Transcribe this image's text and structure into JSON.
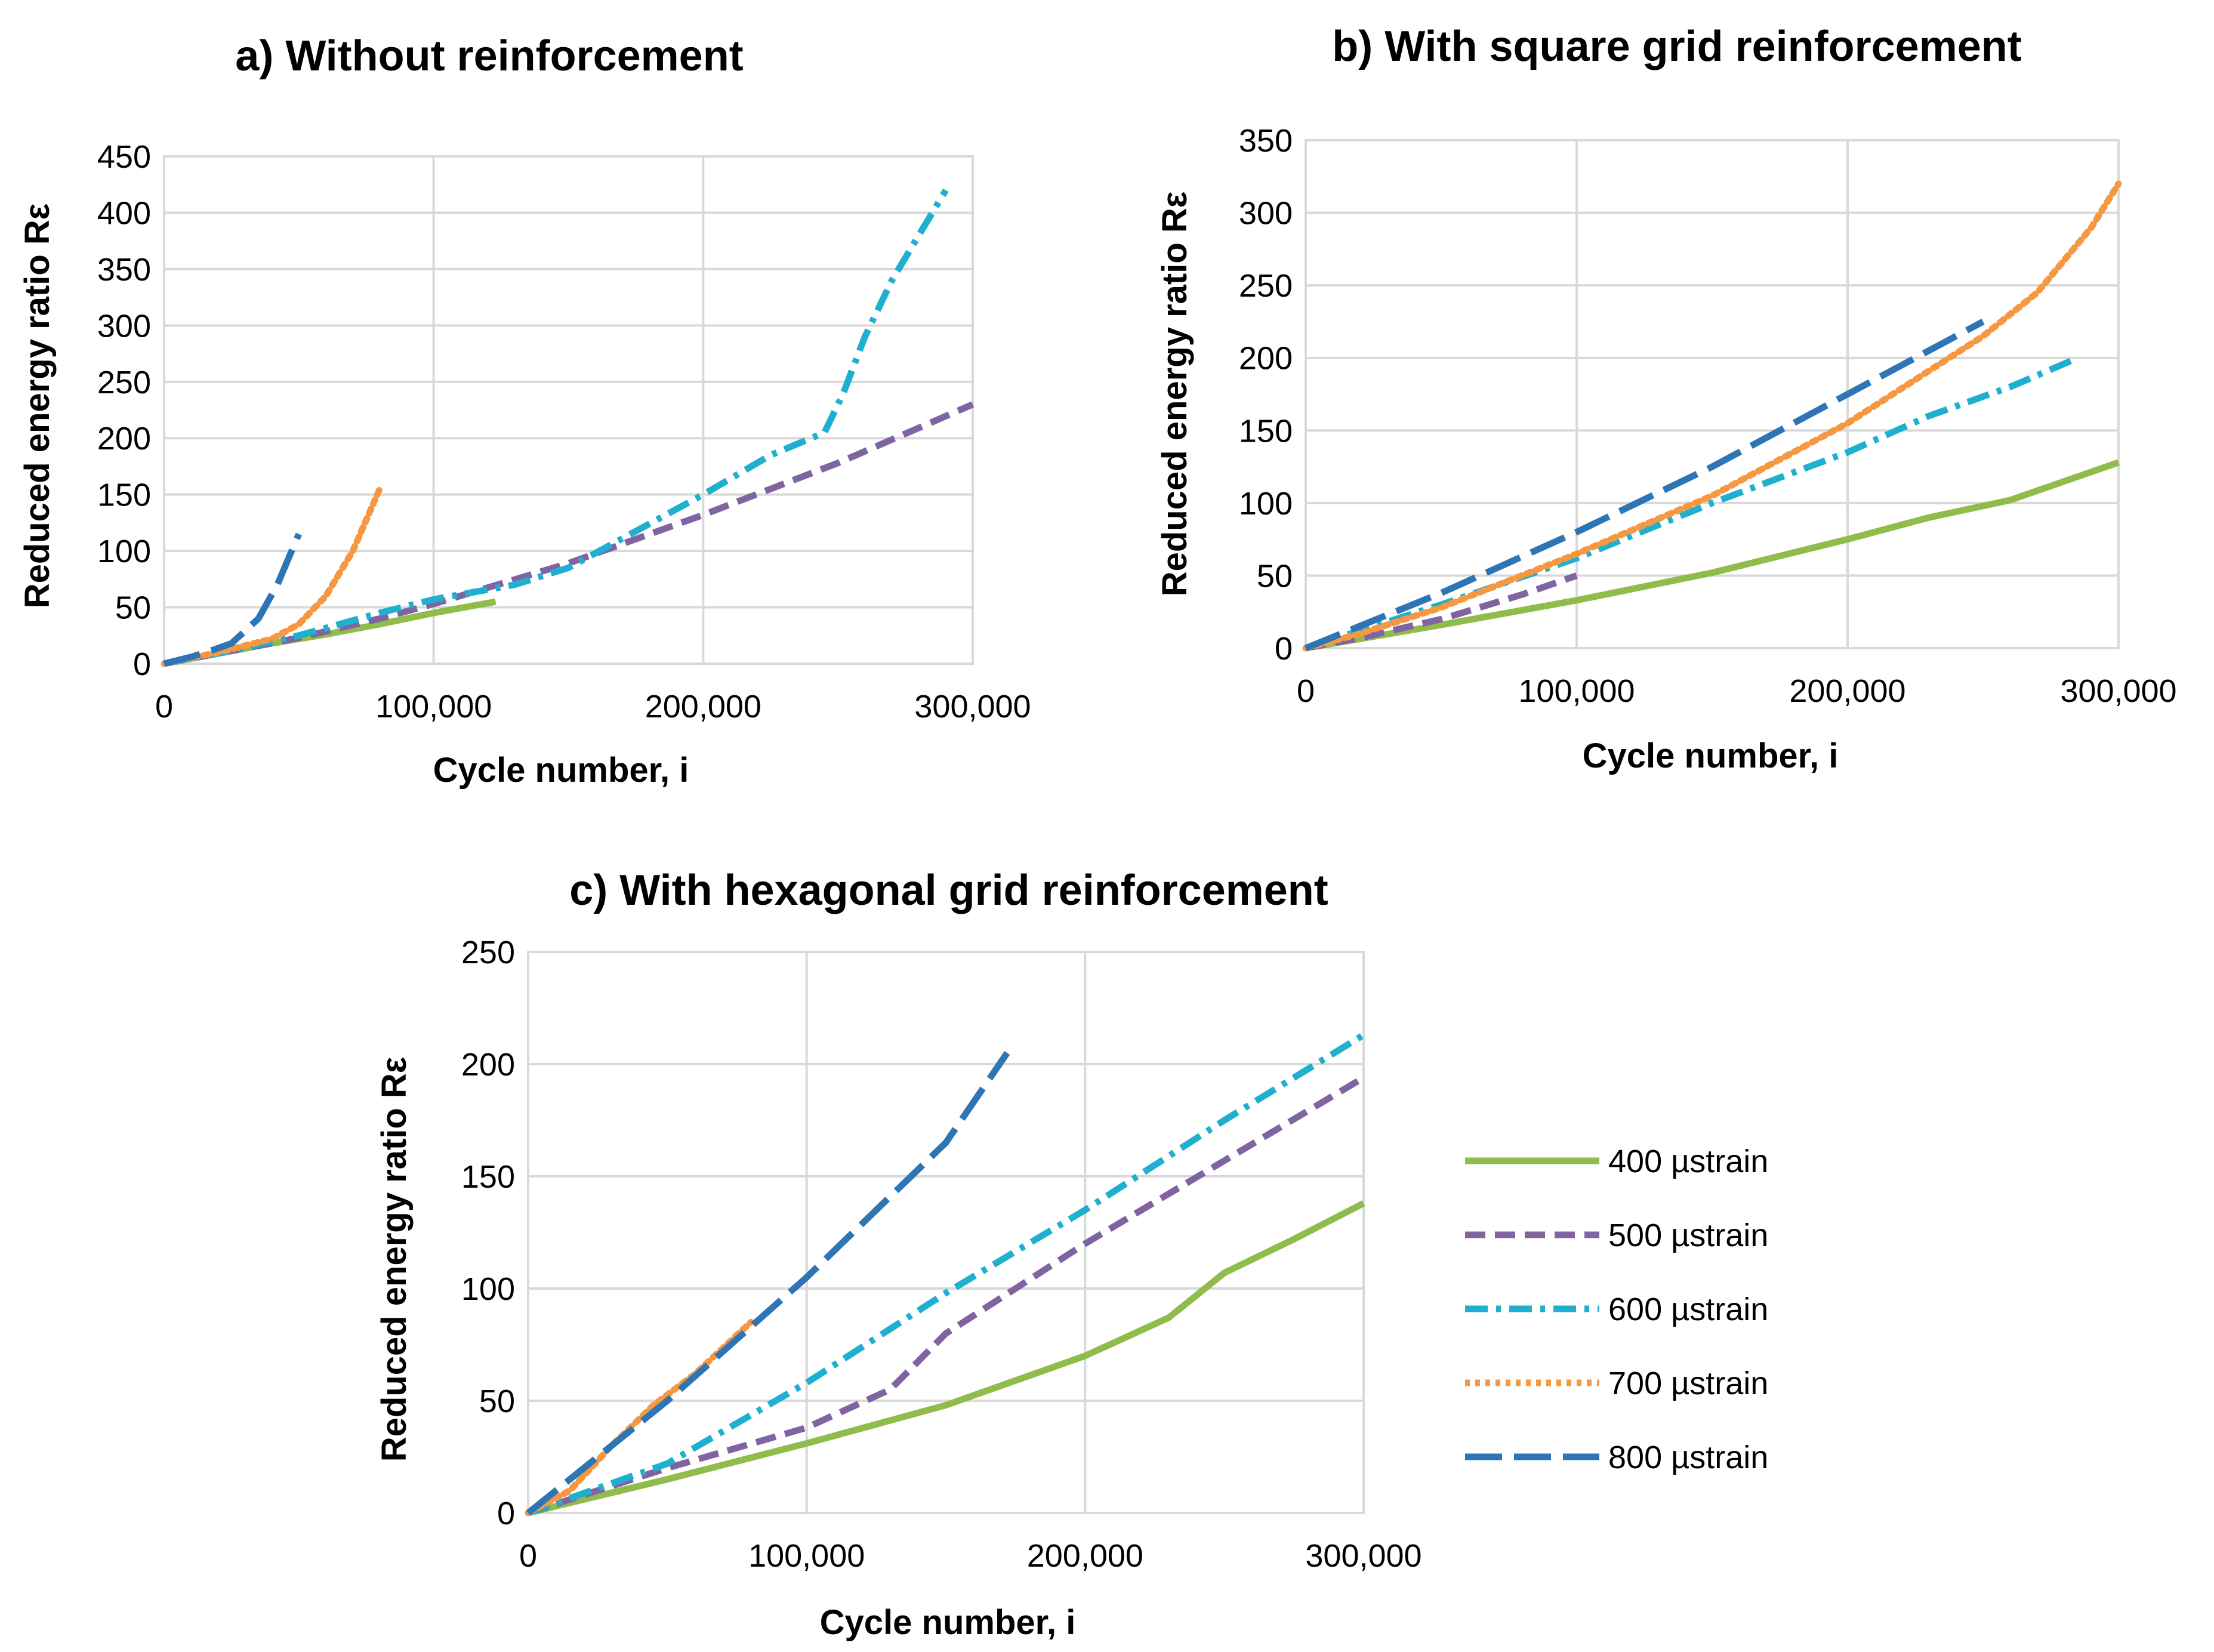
{
  "chart_data": [
    {
      "type": "line",
      "title": "a) Without reinforcement",
      "xlabel": "Cycle number, i",
      "ylabel": "Reduced energy ratio Rε",
      "xlim": [
        0,
        300000
      ],
      "ylim": [
        0,
        450
      ],
      "xticks": [
        0,
        100000,
        200000,
        300000
      ],
      "xtick_labels": [
        "0",
        "100,000",
        "200,000",
        "300,000"
      ],
      "yticks": [
        0,
        50,
        100,
        150,
        200,
        250,
        300,
        350,
        400,
        450
      ],
      "ytick_labels": [
        "0",
        "50",
        "100",
        "150",
        "200",
        "250",
        "300",
        "350",
        "400",
        "450"
      ],
      "grid": true,
      "series": [
        {
          "name": "400 µstrain",
          "x": [
            0,
            20000,
            40000,
            60000,
            80000,
            100000,
            123000
          ],
          "y": [
            0,
            9,
            18,
            26,
            35,
            45,
            55
          ]
        },
        {
          "name": "500 µstrain",
          "x": [
            0,
            20000,
            50000,
            80000,
            100000,
            150000,
            200000,
            250000,
            300000
          ],
          "y": [
            0,
            9,
            23,
            40,
            53,
            89,
            132,
            178,
            230
          ]
        },
        {
          "name": "600 µstrain",
          "x": [
            0,
            20000,
            50000,
            80000,
            100000,
            130000,
            150000,
            200000,
            225000,
            240000,
            245000,
            252000,
            260000,
            270000,
            280000,
            290000
          ],
          "y": [
            0,
            9,
            25,
            45,
            57,
            70,
            85,
            150,
            185,
            200,
            205,
            240,
            290,
            340,
            380,
            420
          ]
        },
        {
          "name": "700 µstrain",
          "x": [
            0,
            20000,
            40000,
            50000,
            60000,
            70000,
            80000
          ],
          "y": [
            0,
            10,
            22,
            35,
            60,
            100,
            155
          ]
        },
        {
          "name": "800 µstrain",
          "x": [
            0,
            10000,
            18000,
            25000,
            35000,
            42000,
            50000
          ],
          "y": [
            0,
            6,
            12,
            18,
            40,
            70,
            115
          ]
        }
      ]
    },
    {
      "type": "line",
      "title": "b) With square grid reinforcement",
      "xlabel": "Cycle number, i",
      "ylabel": "Reduced energy ratio Rε",
      "xlim": [
        0,
        300000
      ],
      "ylim": [
        0,
        350
      ],
      "xticks": [
        0,
        100000,
        200000,
        300000
      ],
      "xtick_labels": [
        "0",
        "100,000",
        "200,000",
        "300,000"
      ],
      "yticks": [
        0,
        50,
        100,
        150,
        200,
        250,
        300,
        350
      ],
      "ytick_labels": [
        "0",
        "50",
        "100",
        "150",
        "200",
        "250",
        "300",
        "350"
      ],
      "grid": true,
      "series": [
        {
          "name": "400 µstrain",
          "x": [
            0,
            50000,
            100000,
            150000,
            200000,
            230000,
            260000,
            300000
          ],
          "y": [
            0,
            16,
            33,
            52,
            75,
            90,
            102,
            128
          ]
        },
        {
          "name": "500 µstrain",
          "x": [
            0,
            20000,
            50000,
            80000,
            100000
          ],
          "y": [
            0,
            7,
            20,
            37,
            50
          ]
        },
        {
          "name": "600 µstrain",
          "x": [
            0,
            50000,
            100000,
            150000,
            200000,
            230000,
            260000,
            285000
          ],
          "y": [
            0,
            30,
            62,
            100,
            135,
            160,
            180,
            200
          ]
        },
        {
          "name": "700 µstrain",
          "x": [
            0,
            20000,
            50000,
            100000,
            150000,
            200000,
            250000,
            270000,
            290000,
            300000
          ],
          "y": [
            0,
            10,
            28,
            65,
            105,
            155,
            215,
            245,
            290,
            320
          ]
        },
        {
          "name": "800 µstrain",
          "x": [
            0,
            50000,
            100000,
            150000,
            200000,
            250000
          ],
          "y": [
            0,
            38,
            80,
            125,
            175,
            225
          ]
        }
      ]
    },
    {
      "type": "line",
      "title": "c) With hexagonal grid reinforcement",
      "xlabel": "Cycle number, i",
      "ylabel": "Reduced energy ratio Rε",
      "xlim": [
        0,
        300000
      ],
      "ylim": [
        0,
        250
      ],
      "xticks": [
        0,
        100000,
        200000,
        300000
      ],
      "xtick_labels": [
        "0",
        "100,000",
        "200,000",
        "300,000"
      ],
      "yticks": [
        0,
        50,
        100,
        150,
        200,
        250
      ],
      "ytick_labels": [
        "0",
        "50",
        "100",
        "150",
        "200",
        "250"
      ],
      "grid": true,
      "legend": "right",
      "series": [
        {
          "name": "400 µstrain",
          "x": [
            0,
            50000,
            100000,
            150000,
            200000,
            230000,
            250000,
            275000,
            300000
          ],
          "y": [
            0,
            15,
            31,
            48,
            70,
            87,
            107,
            122,
            138
          ]
        },
        {
          "name": "500 µstrain",
          "x": [
            0,
            50000,
            100000,
            130000,
            150000,
            175000,
            200000,
            250000,
            300000
          ],
          "y": [
            0,
            20,
            38,
            55,
            80,
            100,
            120,
            157,
            194
          ]
        },
        {
          "name": "600 µstrain",
          "x": [
            0,
            50000,
            100000,
            150000,
            200000,
            250000,
            300000
          ],
          "y": [
            0,
            22,
            58,
            98,
            135,
            175,
            213
          ]
        },
        {
          "name": "700 µstrain",
          "x": [
            0,
            15000,
            30000,
            45000,
            60000,
            80000
          ],
          "y": [
            0,
            10,
            30,
            48,
            62,
            85
          ]
        },
        {
          "name": "800 µstrain",
          "x": [
            0,
            50000,
            100000,
            150000,
            172000
          ],
          "y": [
            0,
            50,
            105,
            165,
            205
          ]
        }
      ]
    }
  ],
  "legend": {
    "items": [
      "400 µstrain",
      "500 µstrain",
      "600 µstrain",
      "700 µstrain",
      "800 µstrain"
    ]
  },
  "series_styles": {
    "400 µstrain": {
      "color": "#8fbc4a",
      "dash": "solid"
    },
    "500 µstrain": {
      "color": "#8064a2",
      "dash": "dash"
    },
    "600 µstrain": {
      "color": "#1fafcf",
      "dash": "dashdot"
    },
    "700 µstrain": {
      "color": "#f59841",
      "dash": "dot"
    },
    "800 µstrain": {
      "color": "#2e75b6",
      "dash": "longdash"
    }
  }
}
